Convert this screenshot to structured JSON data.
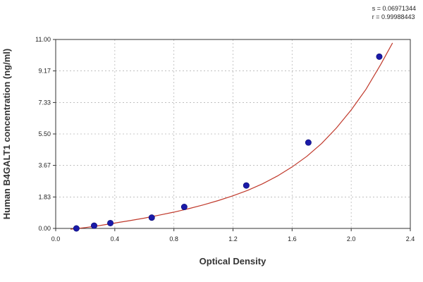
{
  "stats": {
    "s_label": "s = 0.06971344",
    "r_label": "r = 0.99988443"
  },
  "chart_data": {
    "type": "scatter",
    "title": "",
    "xlabel": "Optical Density",
    "ylabel": "Human B4GALT1 concentration (ng/ml)",
    "xlim": [
      0.0,
      2.4
    ],
    "ylim": [
      0.0,
      11.0
    ],
    "x_ticks": [
      "0.0",
      "0.4",
      "0.8",
      "1.2",
      "1.6",
      "2.0",
      "2.4"
    ],
    "x_tick_values": [
      0.0,
      0.4,
      0.8,
      1.2,
      1.6,
      2.0,
      2.4
    ],
    "y_ticks": [
      "0.00",
      "1.83",
      "3.67",
      "5.50",
      "7.33",
      "9.17",
      "11.00"
    ],
    "y_tick_values": [
      0.0,
      1.83,
      3.67,
      5.5,
      7.33,
      9.17,
      11.0
    ],
    "grid": "dashed",
    "series": [
      {
        "type": "scatter",
        "color": "#1a1aa8",
        "x": [
          0.14,
          0.26,
          0.37,
          0.65,
          0.87,
          1.29,
          1.71,
          2.19
        ],
        "y": [
          0.0,
          0.16,
          0.31,
          0.63,
          1.25,
          2.5,
          5.0,
          10.0
        ]
      },
      {
        "type": "line",
        "color": "#c0392b",
        "x": [
          0.1,
          0.2,
          0.3,
          0.4,
          0.5,
          0.6,
          0.7,
          0.8,
          0.9,
          1.0,
          1.1,
          1.2,
          1.3,
          1.4,
          1.5,
          1.6,
          1.7,
          1.8,
          1.9,
          2.0,
          2.1,
          2.2,
          2.28
        ],
        "y": [
          -0.05,
          0.05,
          0.17,
          0.31,
          0.45,
          0.6,
          0.77,
          0.95,
          1.15,
          1.37,
          1.62,
          1.9,
          2.22,
          2.6,
          3.05,
          3.58,
          4.2,
          4.95,
          5.85,
          6.9,
          8.1,
          9.55,
          10.8
        ]
      }
    ]
  }
}
